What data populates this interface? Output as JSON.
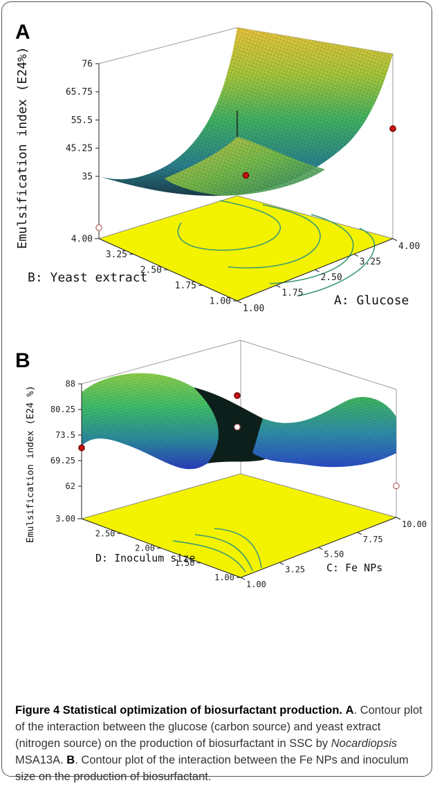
{
  "panels": {
    "a": {
      "label": "A"
    },
    "b": {
      "label": "B"
    }
  },
  "caption": {
    "title": "Figure 4 Statistical optimization of biosurfactant production.",
    "a_tag": "A",
    "a_text_1": ". Contour plot of the interaction between the glucose (carbon source) and yeast extract (nitrogen source) on the production of biosurfactant in SSC by ",
    "a_italic": "Nocardiopsis",
    "a_text_2": " MSA13A. ",
    "b_tag": "B",
    "b_text": ". Contour plot of the interaction between the Fe NPs and inoculum size on the production of biosurfactant."
  },
  "chart_data": [
    {
      "type": "surface",
      "panel": "A",
      "zlabel": "Emulsification index (E24%)",
      "xlabel": "A: Glucose",
      "ylabel": "B: Yeast extract",
      "z_ticks": [
        "76",
        "65.75",
        "55.5",
        "45.25",
        "35"
      ],
      "x_ticks": [
        "1.00",
        "1.75",
        "2.50",
        "3.25",
        "4.00"
      ],
      "y_ticks": [
        "1.00",
        "1.75",
        "2.50",
        "3.25",
        "4.00"
      ],
      "zlim": [
        35,
        76
      ],
      "xlim": [
        1,
        4
      ],
      "ylim": [
        1,
        4
      ],
      "design_points": [
        {
          "x": 4.0,
          "y": 1.0,
          "z": 75,
          "above_surface": true
        },
        {
          "x": 2.5,
          "y": 2.5,
          "z": 58,
          "above_surface": true
        },
        {
          "x": 1.0,
          "y": 4.0,
          "z": 39,
          "above_surface": false
        }
      ],
      "colors": {
        "floor": "#f3f300",
        "contour": "#3c9a73",
        "point_above": "#c41010"
      }
    },
    {
      "type": "surface",
      "panel": "B",
      "zlabel": "Emulsification index (E24 %)",
      "xlabel": "C: Fe NPs",
      "ylabel": "D: Inoculum size",
      "z_ticks": [
        "88",
        "80.25",
        "73.5",
        "69.25",
        "62"
      ],
      "x_ticks": [
        "1.00",
        "3.25",
        "5.50",
        "7.75",
        "10.00"
      ],
      "y_ticks": [
        "1.00",
        "1.50",
        "2.00",
        "2.50",
        "3.00"
      ],
      "zlim": [
        62,
        88
      ],
      "xlim": [
        1,
        10
      ],
      "ylim": [
        1,
        3
      ],
      "design_points": [
        {
          "x": 1.0,
          "y": 3.0,
          "z": 80,
          "above_surface": true
        },
        {
          "x": 10.0,
          "y": 3.0,
          "z": 78,
          "above_surface": true
        },
        {
          "x": 10.0,
          "y": 3.0,
          "z": 70,
          "above_surface": false
        },
        {
          "x": 10.0,
          "y": 1.0,
          "z": 70,
          "above_surface": false
        }
      ],
      "colors": {
        "floor": "#f3f300",
        "contour": "#3c9a73",
        "point_above": "#c41010"
      }
    }
  ]
}
